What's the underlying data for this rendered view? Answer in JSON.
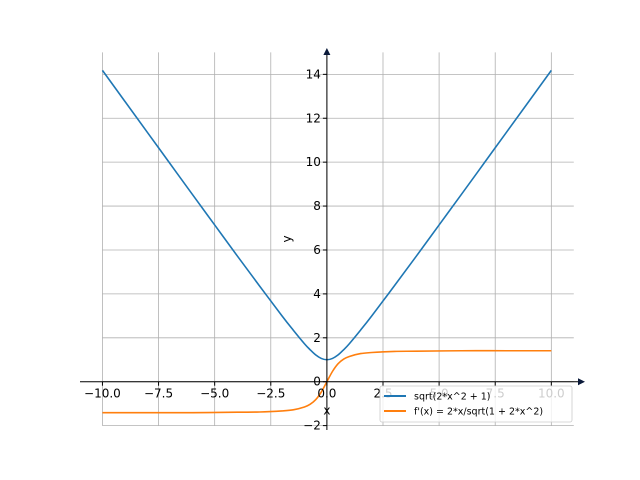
{
  "chart_data": {
    "type": "line",
    "title": "",
    "xlabel": "x",
    "ylabel": "y",
    "xlim": [
      -11.0,
      11.5
    ],
    "ylim": [
      -2.2,
      15.2
    ],
    "x_ticks": [
      -10.0,
      -7.5,
      -5.0,
      -2.5,
      0.0,
      2.5,
      5.0,
      7.5,
      10.0
    ],
    "x_tick_labels": [
      "−10.0",
      "−7.5",
      "−5.0",
      "−2.5",
      "0.0",
      "2.5",
      "5.0",
      "7.5",
      "10.0"
    ],
    "y_ticks": [
      -2,
      0,
      2,
      4,
      6,
      8,
      10,
      12,
      14
    ],
    "y_tick_labels": [
      "−2",
      "0",
      "2",
      "4",
      "6",
      "8",
      "10",
      "12",
      "14"
    ],
    "grid": true,
    "legend_position": "lower-right",
    "series": [
      {
        "name": "sqrt(2*x^2 + 1)",
        "color": "#1f77b4",
        "x": [
          -10,
          -9,
          -8,
          -7,
          -6,
          -5,
          -4,
          -3,
          -2,
          -1.5,
          -1,
          -0.75,
          -0.5,
          -0.25,
          0,
          0.25,
          0.5,
          0.75,
          1,
          1.5,
          2,
          3,
          4,
          5,
          6,
          7,
          8,
          9,
          10
        ],
        "y": [
          14.18,
          12.77,
          11.36,
          9.95,
          8.54,
          7.14,
          5.74,
          4.36,
          3.0,
          2.35,
          1.73,
          1.46,
          1.22,
          1.06,
          1.0,
          1.06,
          1.22,
          1.46,
          1.73,
          2.35,
          3.0,
          4.36,
          5.74,
          7.14,
          8.54,
          9.95,
          11.36,
          12.77,
          14.18
        ]
      },
      {
        "name": "f'(x) = 2*x/sqrt(1 + 2*x^2)",
        "color": "#ff7f0e",
        "x": [
          -10,
          -8,
          -6,
          -4,
          -3,
          -2,
          -1.5,
          -1,
          -0.75,
          -0.5,
          -0.25,
          0,
          0.25,
          0.5,
          0.75,
          1,
          1.5,
          2,
          3,
          4,
          6,
          8,
          10
        ],
        "y": [
          -1.41,
          -1.41,
          -1.41,
          -1.39,
          -1.38,
          -1.33,
          -1.28,
          -1.15,
          -1.03,
          -0.82,
          -0.47,
          0.0,
          0.47,
          0.82,
          1.03,
          1.15,
          1.28,
          1.33,
          1.38,
          1.39,
          1.41,
          1.41,
          1.41
        ]
      }
    ]
  }
}
